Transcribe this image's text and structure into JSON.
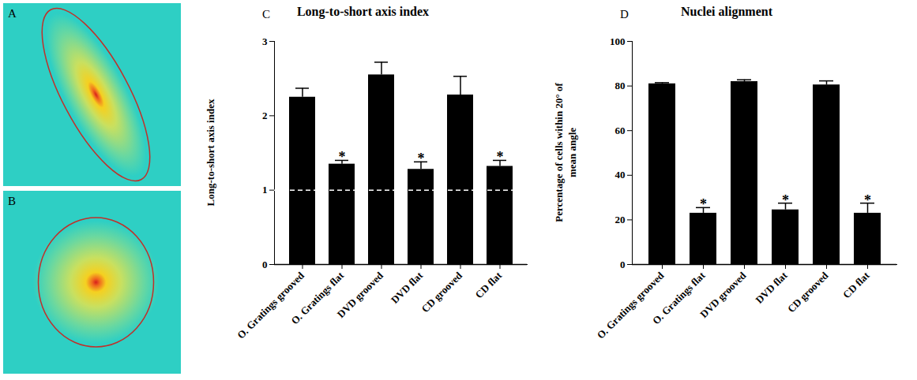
{
  "image_panels": [
    {
      "panel_label": "A"
    },
    {
      "panel_label": "B"
    }
  ],
  "chart_data": [
    {
      "type": "bar",
      "panel_label": "C",
      "title": "Long-to-short axis index",
      "y_label": "Long-to-short axis index",
      "categories": [
        "O. Gratings grooved",
        "O. Gratings flat",
        "DVD grooved",
        "DVD flat",
        "CD grooved",
        "CD flat"
      ],
      "values": [
        2.25,
        1.35,
        2.55,
        1.28,
        2.28,
        1.32
      ],
      "errors": [
        0.12,
        0.05,
        0.17,
        0.1,
        0.25,
        0.08
      ],
      "annotations": [
        null,
        "*",
        null,
        "*",
        null,
        "*"
      ],
      "reference_line": 1,
      "color": "#000000",
      "ylim": [
        0,
        3
      ],
      "yticks": [
        0,
        1,
        2,
        3
      ]
    },
    {
      "type": "bar",
      "panel_label": "D",
      "title": "Nuclei alignment",
      "y_label": "Percentage of cells within 20° of mean angle",
      "categories": [
        "O. Gratings grooved",
        "O. Gratings flat",
        "DVD grooved",
        "DVD flat",
        "CD grooved",
        "CD flat"
      ],
      "values": [
        81,
        23,
        82,
        24.5,
        80.5,
        23
      ],
      "errors": [
        0.5,
        2.5,
        0.8,
        3,
        1.8,
        4.5
      ],
      "annotations": [
        null,
        "*",
        null,
        "*",
        null,
        "*"
      ],
      "color": "#000000",
      "ylim": [
        0,
        100
      ],
      "yticks": [
        0,
        20,
        40,
        60,
        80,
        100
      ]
    }
  ]
}
